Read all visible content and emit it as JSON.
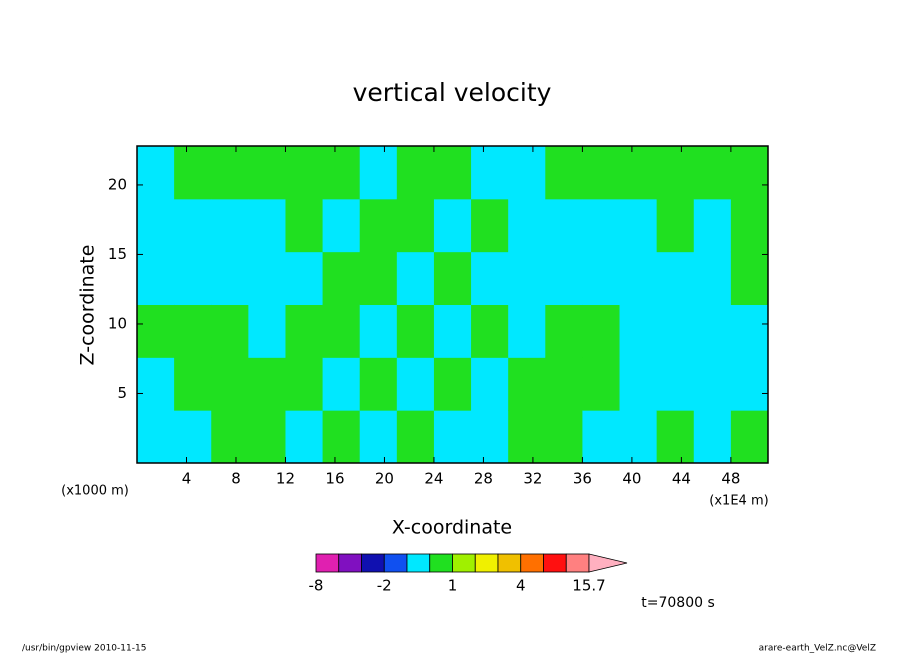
{
  "chart_data": {
    "type": "contour",
    "title": "vertical velocity",
    "x_label": "X-coordinate",
    "y_label": "Z-coordinate",
    "x_unit": "(x1000 m)",
    "x_scale_note": "(x1E4 m)",
    "time_label": "t=70800 s",
    "footer_left": "/usr/bin/gpview  2010-11-15",
    "footer_right": "arare-earth_VelZ.nc@VelZ",
    "xlim": [
      0,
      51
    ],
    "ylim": [
      0,
      22.8
    ],
    "xticks": [
      4,
      8,
      12,
      16,
      20,
      24,
      28,
      32,
      36,
      40,
      44,
      48
    ],
    "yticks": [
      5,
      10,
      15,
      20
    ],
    "field": {
      "x_edges": [
        0,
        3,
        6,
        9,
        12,
        15,
        18,
        21,
        24,
        27,
        30,
        33,
        36,
        39,
        42,
        45,
        48,
        51
      ],
      "z_edges": [
        0,
        3.8,
        7.6,
        11.4,
        15.2,
        19,
        22.8
      ],
      "values": [
        [
          -0.5,
          -0.5,
          0.5,
          -0.5,
          -0.5,
          -0.5
        ],
        [
          -0.5,
          0.5,
          0.5,
          -0.5,
          -0.5,
          0.5
        ],
        [
          0.5,
          0.5,
          0.5,
          -0.5,
          -0.5,
          0.5
        ],
        [
          0.5,
          0.5,
          -0.5,
          -0.5,
          -0.5,
          0.5
        ],
        [
          -0.5,
          0.5,
          0.5,
          -0.5,
          0.5,
          0.5
        ],
        [
          0.5,
          -0.5,
          0.5,
          0.5,
          -0.5,
          0.5
        ],
        [
          -0.5,
          0.5,
          -0.5,
          0.5,
          0.5,
          -0.5
        ],
        [
          0.5,
          -0.5,
          0.5,
          -0.5,
          0.5,
          0.5
        ],
        [
          -0.5,
          0.5,
          -0.5,
          0.5,
          -0.5,
          0.5
        ],
        [
          -0.5,
          -0.5,
          0.5,
          -0.5,
          0.5,
          -0.5
        ],
        [
          0.5,
          0.5,
          -0.5,
          -0.5,
          -0.5,
          -0.5
        ],
        [
          0.5,
          0.5,
          0.5,
          -0.5,
          -0.5,
          0.5
        ],
        [
          -0.5,
          0.5,
          0.5,
          -0.5,
          -0.5,
          0.5
        ],
        [
          -0.5,
          -0.5,
          -0.5,
          -0.5,
          -0.5,
          0.5
        ],
        [
          0.5,
          -0.5,
          -0.5,
          -0.5,
          0.5,
          0.5
        ],
        [
          -0.5,
          -0.5,
          -0.5,
          -0.5,
          -0.5,
          0.5
        ],
        [
          0.5,
          -0.5,
          -0.5,
          0.5,
          0.5,
          0.5
        ]
      ]
    },
    "colorbar": {
      "levels": [
        -8,
        -4,
        -3,
        -2,
        -1,
        0,
        1,
        2,
        3,
        4,
        8,
        12,
        15.7
      ],
      "colors": [
        "#e020b0",
        "#8010c0",
        "#1010b0",
        "#1050f0",
        "#00e8ff",
        "#20e020",
        "#a0f000",
        "#f0f000",
        "#f0c000",
        "#ff7000",
        "#ff1010",
        "#ff8080"
      ],
      "extend_color": "#ffb0c0",
      "ticks": [
        -8,
        -2,
        1,
        4,
        15.7
      ]
    }
  }
}
